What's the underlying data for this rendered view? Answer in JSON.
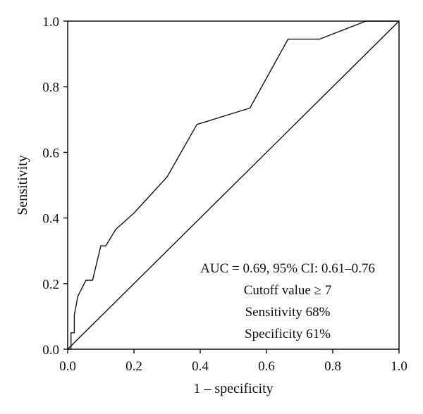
{
  "chart_data": {
    "type": "line",
    "xlabel": "1 – specificity",
    "ylabel": "Sensitivity",
    "xlim": [
      0.0,
      1.0
    ],
    "ylim": [
      0.0,
      1.0
    ],
    "x_ticks": [
      "0.0",
      "0.2",
      "0.4",
      "0.6",
      "0.8",
      "1.0"
    ],
    "y_ticks": [
      "0.0",
      "0.2",
      "0.4",
      "0.6",
      "0.8",
      "1.0"
    ],
    "grid": false,
    "series": [
      {
        "kind": "roc",
        "x": [
          0.0,
          0.01,
          0.01,
          0.02,
          0.02,
          0.025,
          0.03,
          0.055,
          0.075,
          0.1,
          0.115,
          0.145,
          0.2,
          0.3,
          0.39,
          0.55,
          0.665,
          0.76,
          0.9,
          1.0
        ],
        "y": [
          0.0,
          0.0,
          0.05,
          0.05,
          0.105,
          0.13,
          0.16,
          0.21,
          0.21,
          0.315,
          0.315,
          0.365,
          0.415,
          0.525,
          0.685,
          0.735,
          0.945,
          0.945,
          1.0,
          1.0
        ]
      },
      {
        "kind": "reference",
        "x": [
          0.0,
          1.0
        ],
        "y": [
          0.0,
          1.0
        ]
      }
    ],
    "annotations": [
      "AUC = 0.69, 95% CI: 0.61–0.76",
      "Cutoff value ≥ 7",
      "Sensitivity 68%",
      "Specificity 61%"
    ]
  }
}
